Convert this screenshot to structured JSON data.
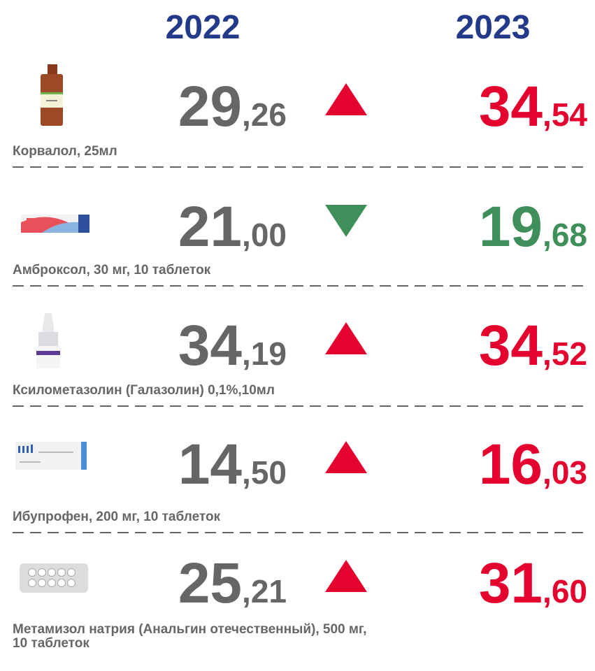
{
  "header": {
    "year_left": "2022",
    "year_right": "2023"
  },
  "rows": [
    {
      "name_lines": [
        "Корвалол, 25мл"
      ],
      "price_2022": "29,26",
      "price_2023": "34,54",
      "trend": "up"
    },
    {
      "name_lines": [
        "Амброксол, 30 мг, 10 таблеток"
      ],
      "price_2022": "21,00",
      "price_2023": "19,68",
      "trend": "down"
    },
    {
      "name_lines": [
        "Ксилометазолин (Галазолин) 0,1%,10мл"
      ],
      "price_2022": "34,19",
      "price_2023": "34,52",
      "trend": "up"
    },
    {
      "name_lines": [
        "Ибупрофен, 200 мг, 10 таблеток"
      ],
      "price_2022": "14,50",
      "price_2023": "16,03",
      "trend": "up"
    },
    {
      "name_lines": [
        "Метамизол натрия (Анальгин отечественный), 500 мг,",
        "10 таблеток"
      ],
      "price_2022": "25,21",
      "price_2023": "31,60",
      "trend": "up"
    }
  ],
  "colors": {
    "year": "#233a8b",
    "old": "#666666",
    "up": "#e4032e",
    "down": "#3e8f5a"
  }
}
